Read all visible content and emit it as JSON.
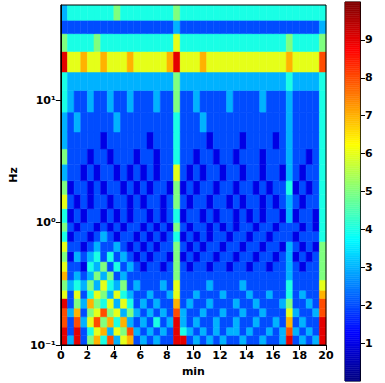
{
  "chart_data": {
    "type": "heatmap",
    "x_label": "min",
    "y_label": "Hz",
    "log": "y",
    "xlim": [
      0,
      20
    ],
    "xticks": [
      0,
      2,
      4,
      6,
      8,
      10,
      12,
      14,
      16,
      18,
      20
    ],
    "ylim": [
      0.1,
      60
    ],
    "yticks": [
      {
        "value": 0.1,
        "label": "10⁻¹"
      },
      {
        "value": 1,
        "label": "10⁰"
      },
      {
        "value": 10,
        "label": "10¹"
      }
    ],
    "x_edges": [
      0,
      0.5,
      1,
      1.5,
      2,
      2.5,
      3,
      3.5,
      4,
      4.5,
      5,
      5.5,
      6,
      6.5,
      7,
      7.5,
      8,
      8.5,
      9,
      9.5,
      10,
      10.5,
      11,
      11.5,
      12,
      12.5,
      13,
      13.5,
      14,
      14.5,
      15,
      15.5,
      16,
      16.5,
      17,
      17.5,
      18,
      18.5,
      19,
      19.5,
      20
    ],
    "y_edges": [
      0.1,
      0.12,
      0.14,
      0.17,
      0.2,
      0.24,
      0.28,
      0.34,
      0.4,
      0.48,
      0.58,
      0.7,
      0.85,
      1,
      1.3,
      1.7,
      2.2,
      3,
      4,
      5.5,
      8,
      12,
      17,
      25,
      35,
      45,
      60
    ],
    "z": [
      [
        9,
        3,
        9,
        2,
        5,
        7,
        4,
        8,
        3,
        6,
        7,
        2,
        3,
        2,
        3,
        2,
        2,
        9,
        9,
        2,
        3,
        2,
        3,
        2,
        3,
        2,
        2,
        3,
        2,
        2,
        3,
        2,
        2,
        3,
        9,
        2,
        3,
        2,
        3,
        9
      ],
      [
        9,
        2,
        9,
        2,
        4,
        6,
        7,
        3,
        6,
        5,
        8,
        3,
        2,
        3,
        2,
        3,
        2,
        9,
        4,
        3,
        2,
        3,
        2,
        3,
        2,
        3,
        3,
        2,
        3,
        2,
        2,
        3,
        2,
        3,
        8,
        3,
        2,
        3,
        2,
        9
      ],
      [
        8,
        2,
        8,
        3,
        6,
        8,
        5,
        7,
        4,
        7,
        3,
        2,
        3,
        2,
        4,
        2,
        3,
        9,
        3,
        2,
        3,
        2,
        2,
        3,
        2,
        2,
        3,
        2,
        2,
        3,
        2,
        2,
        3,
        2,
        7,
        2,
        3,
        2,
        2,
        9
      ],
      [
        8,
        3,
        7,
        2,
        5,
        6,
        8,
        5,
        6,
        3,
        5,
        3,
        2,
        3,
        2,
        3,
        2,
        8,
        3,
        2,
        2,
        3,
        2,
        2,
        3,
        2,
        2,
        3,
        2,
        2,
        3,
        2,
        2,
        2,
        6,
        3,
        2,
        2,
        3,
        8
      ],
      [
        9,
        2,
        5,
        3,
        7,
        5,
        4,
        6,
        3,
        6,
        4,
        2,
        3,
        2,
        3,
        2,
        2,
        7,
        2,
        3,
        2,
        2,
        3,
        2,
        2,
        2,
        3,
        2,
        2,
        3,
        2,
        2,
        2,
        3,
        5,
        2,
        2,
        3,
        2,
        8
      ],
      [
        6,
        2,
        6,
        2,
        4,
        6,
        5,
        3,
        6,
        4,
        3,
        2,
        2,
        3,
        2,
        2,
        3,
        6,
        2,
        2,
        3,
        2,
        2,
        2,
        3,
        2,
        2,
        2,
        3,
        2,
        2,
        3,
        2,
        2,
        4,
        2,
        3,
        2,
        2,
        7
      ],
      [
        5,
        3,
        4,
        3,
        5,
        3,
        6,
        4,
        3,
        5,
        2,
        3,
        2,
        2,
        2,
        3,
        2,
        6,
        2,
        2,
        2,
        2,
        3,
        2,
        2,
        2,
        2,
        3,
        2,
        2,
        2,
        2,
        2,
        2,
        4,
        2,
        2,
        2,
        2,
        6
      ],
      [
        7,
        2,
        3,
        2,
        3,
        5,
        3,
        5,
        2,
        3,
        2,
        2,
        2,
        2,
        2,
        2,
        2,
        5,
        2,
        2,
        2,
        2,
        2,
        2,
        2,
        2,
        2,
        2,
        2,
        2,
        2,
        2,
        2,
        2,
        3,
        2,
        2,
        2,
        2,
        5
      ],
      [
        6,
        2,
        2,
        1,
        4,
        3,
        5,
        2,
        4,
        2,
        3,
        2,
        1,
        2,
        2,
        1,
        2,
        5,
        2,
        1,
        2,
        2,
        1,
        2,
        2,
        1,
        2,
        2,
        1,
        2,
        2,
        1,
        2,
        2,
        3,
        2,
        1,
        2,
        2,
        5
      ],
      [
        5,
        1,
        3,
        2,
        3,
        4,
        2,
        4,
        2,
        3,
        2,
        1,
        2,
        1,
        2,
        2,
        1,
        5,
        1,
        2,
        1,
        2,
        2,
        1,
        2,
        2,
        1,
        2,
        2,
        1,
        2,
        2,
        1,
        2,
        3,
        1,
        2,
        1,
        2,
        5
      ],
      [
        6,
        2,
        2,
        1,
        2,
        3,
        2,
        2,
        3,
        2,
        1,
        2,
        1,
        2,
        1,
        2,
        2,
        5,
        2,
        1,
        2,
        1,
        2,
        2,
        1,
        2,
        2,
        1,
        2,
        2,
        1,
        2,
        2,
        1,
        3,
        2,
        1,
        2,
        1,
        5
      ],
      [
        4,
        1,
        2,
        2,
        1,
        2,
        3,
        2,
        1,
        2,
        2,
        1,
        2,
        1,
        2,
        1,
        2,
        4,
        1,
        2,
        1,
        2,
        1,
        2,
        2,
        1,
        2,
        2,
        1,
        2,
        2,
        1,
        2,
        2,
        2,
        1,
        2,
        2,
        2,
        4
      ],
      [
        5,
        2,
        1,
        2,
        2,
        1,
        2,
        1,
        2,
        1,
        2,
        2,
        1,
        2,
        1,
        2,
        1,
        5,
        2,
        1,
        2,
        2,
        1,
        2,
        1,
        2,
        1,
        2,
        2,
        1,
        2,
        2,
        1,
        2,
        2,
        2,
        1,
        2,
        1,
        4
      ],
      [
        4,
        1,
        2,
        1,
        2,
        2,
        1,
        2,
        1,
        2,
        1,
        2,
        2,
        1,
        2,
        1,
        2,
        4,
        1,
        2,
        2,
        1,
        2,
        1,
        2,
        2,
        1,
        2,
        1,
        2,
        1,
        2,
        2,
        1,
        3,
        1,
        2,
        2,
        1,
        4
      ],
      [
        6,
        2,
        1,
        2,
        1,
        2,
        2,
        1,
        2,
        2,
        1,
        2,
        1,
        2,
        2,
        1,
        2,
        5,
        2,
        1,
        2,
        2,
        1,
        2,
        2,
        1,
        2,
        1,
        2,
        2,
        1,
        2,
        1,
        2,
        3,
        2,
        1,
        2,
        2,
        4
      ],
      [
        5,
        1,
        2,
        2,
        1,
        2,
        1,
        2,
        2,
        1,
        2,
        1,
        2,
        1,
        2,
        2,
        1,
        5,
        1,
        2,
        1,
        2,
        2,
        1,
        2,
        2,
        1,
        2,
        2,
        1,
        2,
        1,
        2,
        2,
        4,
        1,
        2,
        1,
        2,
        4
      ],
      [
        3,
        2,
        2,
        1,
        2,
        1,
        2,
        2,
        1,
        2,
        1,
        2,
        1,
        2,
        1,
        2,
        2,
        6,
        2,
        1,
        2,
        1,
        2,
        2,
        1,
        2,
        2,
        1,
        2,
        2,
        1,
        2,
        2,
        1,
        3,
        2,
        1,
        2,
        2,
        4
      ],
      [
        5,
        2,
        2,
        2,
        1,
        2,
        2,
        1,
        2,
        2,
        2,
        1,
        2,
        2,
        1,
        2,
        2,
        4,
        2,
        2,
        1,
        2,
        2,
        1,
        2,
        2,
        1,
        2,
        2,
        2,
        1,
        2,
        2,
        2,
        3,
        2,
        2,
        1,
        2,
        4
      ],
      [
        3,
        2,
        2,
        2,
        2,
        2,
        1,
        2,
        2,
        2,
        2,
        2,
        2,
        1,
        2,
        2,
        2,
        4,
        2,
        2,
        2,
        2,
        1,
        2,
        2,
        2,
        2,
        1,
        2,
        2,
        2,
        2,
        1,
        2,
        3,
        2,
        2,
        2,
        2,
        4
      ],
      [
        3,
        2,
        3,
        2,
        2,
        2,
        2,
        2,
        3,
        2,
        2,
        2,
        2,
        2,
        2,
        2,
        2,
        4,
        2,
        2,
        2,
        3,
        2,
        2,
        2,
        2,
        2,
        2,
        2,
        2,
        2,
        2,
        2,
        2,
        3,
        2,
        2,
        2,
        2,
        4
      ],
      [
        4,
        3,
        2,
        2,
        3,
        2,
        2,
        3,
        2,
        2,
        3,
        2,
        2,
        2,
        3,
        2,
        2,
        5,
        2,
        2,
        3,
        2,
        2,
        2,
        2,
        3,
        2,
        2,
        2,
        2,
        3,
        2,
        2,
        2,
        3,
        2,
        2,
        2,
        2,
        4
      ],
      [
        4,
        3,
        3,
        3,
        3,
        3,
        3,
        3,
        3,
        3,
        3,
        3,
        3,
        3,
        3,
        3,
        3,
        5,
        3,
        3,
        3,
        3,
        3,
        3,
        3,
        3,
        3,
        3,
        3,
        3,
        3,
        3,
        3,
        3,
        4,
        3,
        3,
        3,
        3,
        4
      ],
      [
        9,
        6,
        6,
        7,
        6,
        6,
        7,
        6,
        6,
        6,
        7,
        6,
        6,
        6,
        6,
        6,
        7,
        9,
        6,
        6,
        6,
        7,
        6,
        6,
        6,
        6,
        6,
        6,
        6,
        6,
        6,
        6,
        6,
        6,
        7,
        6,
        6,
        6,
        6,
        8
      ],
      [
        5,
        4,
        4,
        4,
        4,
        5,
        4,
        4,
        4,
        4,
        4,
        4,
        4,
        4,
        4,
        4,
        4,
        6,
        4,
        4,
        4,
        4,
        4,
        4,
        4,
        4,
        4,
        4,
        4,
        4,
        4,
        4,
        4,
        4,
        5,
        4,
        4,
        4,
        4,
        5
      ],
      [
        2,
        2,
        2,
        2,
        2,
        2,
        2,
        2,
        2,
        2,
        2,
        2,
        2,
        2,
        2,
        2,
        2,
        3,
        2,
        2,
        2,
        2,
        2,
        2,
        2,
        2,
        2,
        2,
        2,
        2,
        2,
        2,
        2,
        2,
        2,
        2,
        2,
        2,
        2,
        3
      ],
      [
        3,
        4,
        4,
        4,
        4,
        4,
        4,
        4,
        5,
        4,
        4,
        4,
        4,
        4,
        4,
        4,
        4,
        5,
        4,
        4,
        4,
        4,
        4,
        4,
        4,
        4,
        4,
        4,
        4,
        4,
        4,
        4,
        4,
        4,
        4,
        4,
        4,
        4,
        4,
        4
      ]
    ],
    "colorbar": {
      "range": [
        0,
        10
      ],
      "ticks": [
        1,
        2,
        3,
        4,
        5,
        6,
        7,
        8,
        9
      ]
    }
  }
}
